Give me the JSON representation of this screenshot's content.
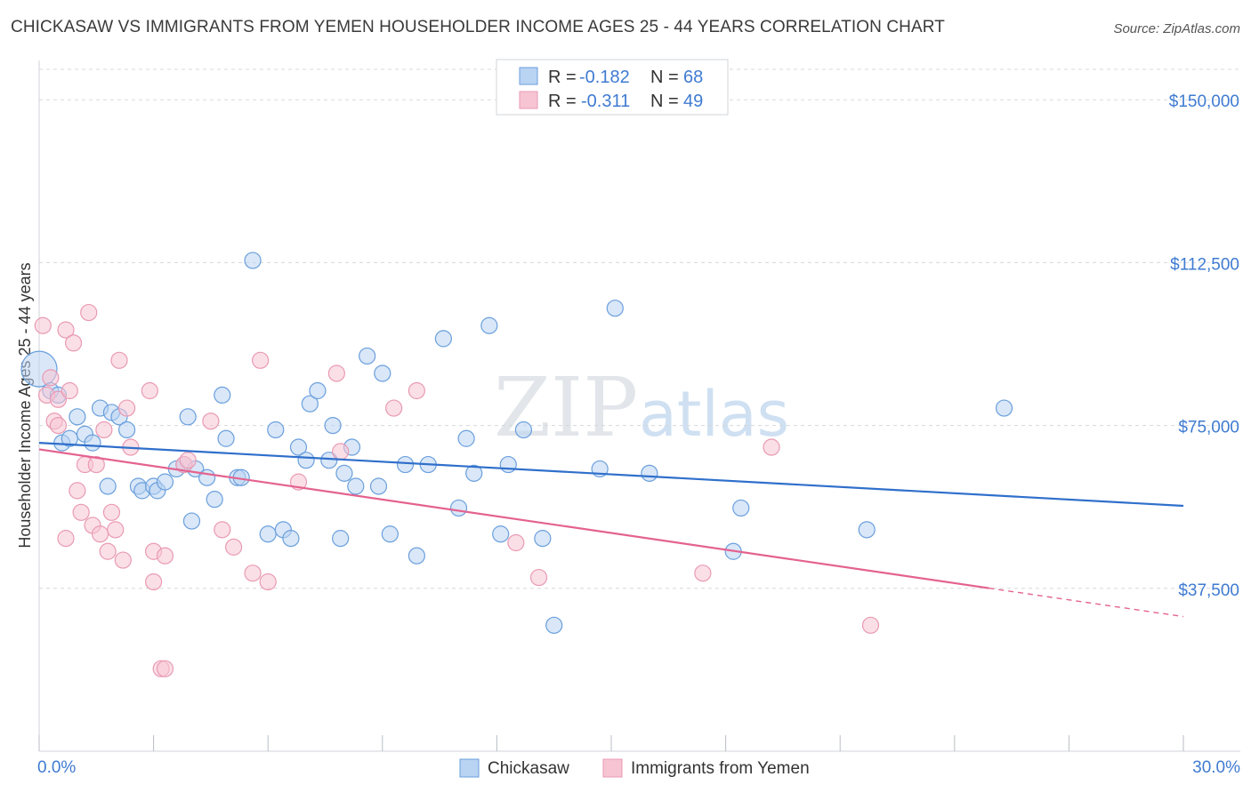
{
  "title": "CHICKASAW VS IMMIGRANTS FROM YEMEN HOUSEHOLDER INCOME AGES 25 - 44 YEARS CORRELATION CHART",
  "source": "Source: ZipAtlas.com",
  "watermark": {
    "zip": "ZIP",
    "atlas": "atlas"
  },
  "colors": {
    "blue_fill": "#b9d3f3",
    "blue_stroke": "#6a9fdc",
    "blue_line": "#2f6fcb",
    "pink_fill": "#f7c4d3",
    "pink_stroke": "#e99ab3",
    "pink_line": "#e4628f",
    "grid": "#d5d8dc",
    "accent_text": "#3f7bd1"
  },
  "legend": {
    "row1": {
      "r_label": "R = ",
      "r_value": "-0.182",
      "n_label": "N = ",
      "n_value": "68"
    },
    "row2": {
      "r_label": "R = ",
      "r_value": "-0.311",
      "n_label": "N = ",
      "n_value": "49"
    }
  },
  "chart_data": {
    "type": "scatter",
    "title": "CHICKASAW VS IMMIGRANTS FROM YEMEN HOUSEHOLDER INCOME AGES 25 - 44 YEARS CORRELATION CHART",
    "xlabel": "",
    "ylabel": "Householder Income Ages 25 - 44 years",
    "xlim": [
      0,
      30
    ],
    "ylim": [
      0,
      157000
    ],
    "x_tick_labels": [
      "0.0%",
      "30.0%"
    ],
    "y_ticks": [
      37500,
      75000,
      112500,
      150000
    ],
    "y_tick_labels": [
      "$37,500",
      "$75,000",
      "$112,500",
      "$150,000"
    ],
    "grid": true,
    "legend_position": "top-center",
    "series": [
      {
        "name": "Chickasaw",
        "color": "#6a9fdc",
        "r": -0.182,
        "n": 68,
        "trend": {
          "x0": 0,
          "y0": 71000,
          "x1": 30,
          "y1": 56500,
          "dashed_from": null
        },
        "points": [
          [
            0.0,
            88000,
            20
          ],
          [
            0.3,
            83000,
            9
          ],
          [
            0.5,
            82000,
            9
          ],
          [
            0.6,
            71000,
            9
          ],
          [
            0.8,
            72000,
            9
          ],
          [
            1.0,
            77000,
            9
          ],
          [
            1.2,
            73000,
            9
          ],
          [
            1.4,
            71000,
            9
          ],
          [
            1.6,
            79000,
            9
          ],
          [
            1.8,
            61000,
            9
          ],
          [
            1.9,
            78000,
            9
          ],
          [
            2.1,
            77000,
            9
          ],
          [
            2.3,
            74000,
            9
          ],
          [
            2.6,
            61000,
            9
          ],
          [
            2.7,
            60000,
            9
          ],
          [
            3.0,
            61000,
            9
          ],
          [
            3.1,
            60000,
            9
          ],
          [
            3.3,
            62000,
            9
          ],
          [
            3.6,
            65000,
            9
          ],
          [
            3.8,
            66000,
            9
          ],
          [
            3.9,
            77000,
            9
          ],
          [
            4.0,
            53000,
            9
          ],
          [
            4.1,
            65000,
            9
          ],
          [
            4.4,
            63000,
            9
          ],
          [
            4.6,
            58000,
            9
          ],
          [
            4.8,
            82000,
            9
          ],
          [
            4.9,
            72000,
            9
          ],
          [
            5.2,
            63000,
            9
          ],
          [
            5.3,
            63000,
            9
          ],
          [
            5.6,
            113000,
            9
          ],
          [
            6.0,
            50000,
            9
          ],
          [
            6.2,
            74000,
            9
          ],
          [
            6.4,
            51000,
            9
          ],
          [
            6.6,
            49000,
            9
          ],
          [
            6.8,
            70000,
            9
          ],
          [
            7.0,
            67000,
            9
          ],
          [
            7.1,
            80000,
            9
          ],
          [
            7.3,
            83000,
            9
          ],
          [
            7.6,
            67000,
            9
          ],
          [
            7.7,
            75000,
            9
          ],
          [
            7.9,
            49000,
            9
          ],
          [
            8.0,
            64000,
            9
          ],
          [
            8.2,
            70000,
            9
          ],
          [
            8.3,
            61000,
            9
          ],
          [
            8.6,
            91000,
            9
          ],
          [
            8.9,
            61000,
            9
          ],
          [
            9.0,
            87000,
            9
          ],
          [
            9.2,
            50000,
            9
          ],
          [
            9.6,
            66000,
            9
          ],
          [
            9.9,
            45000,
            9
          ],
          [
            10.2,
            66000,
            9
          ],
          [
            10.6,
            95000,
            9
          ],
          [
            11.0,
            56000,
            9
          ],
          [
            11.2,
            72000,
            9
          ],
          [
            11.4,
            64000,
            9
          ],
          [
            11.8,
            98000,
            9
          ],
          [
            12.1,
            50000,
            9
          ],
          [
            12.3,
            66000,
            9
          ],
          [
            12.7,
            74000,
            9
          ],
          [
            13.2,
            49000,
            9
          ],
          [
            13.5,
            29000,
            9
          ],
          [
            14.7,
            65000,
            9
          ],
          [
            15.1,
            102000,
            9
          ],
          [
            16.0,
            64000,
            9
          ],
          [
            18.2,
            46000,
            9
          ],
          [
            18.4,
            56000,
            9
          ],
          [
            21.7,
            51000,
            9
          ],
          [
            25.3,
            79000,
            9
          ]
        ]
      },
      {
        "name": "Immigrants from Yemen",
        "color": "#e99ab3",
        "r": -0.311,
        "n": 49,
        "trend": {
          "x0": 0,
          "y0": 69500,
          "x1": 30,
          "y1": 31000,
          "dashed_from": 24.9
        },
        "points": [
          [
            0.1,
            98000,
            9
          ],
          [
            0.2,
            82000,
            9
          ],
          [
            0.3,
            86000,
            9
          ],
          [
            0.4,
            76000,
            9
          ],
          [
            0.5,
            81000,
            9
          ],
          [
            0.5,
            75000,
            9
          ],
          [
            0.7,
            49000,
            9
          ],
          [
            0.7,
            97000,
            9
          ],
          [
            0.8,
            83000,
            9
          ],
          [
            0.9,
            94000,
            9
          ],
          [
            1.0,
            60000,
            9
          ],
          [
            1.1,
            55000,
            9
          ],
          [
            1.2,
            66000,
            9
          ],
          [
            1.3,
            101000,
            9
          ],
          [
            1.4,
            52000,
            9
          ],
          [
            1.5,
            66000,
            9
          ],
          [
            1.6,
            50000,
            9
          ],
          [
            1.7,
            74000,
            9
          ],
          [
            1.8,
            46000,
            9
          ],
          [
            1.9,
            55000,
            9
          ],
          [
            2.0,
            51000,
            9
          ],
          [
            2.1,
            90000,
            9
          ],
          [
            2.2,
            44000,
            9
          ],
          [
            2.3,
            79000,
            9
          ],
          [
            2.4,
            70000,
            9
          ],
          [
            2.9,
            83000,
            9
          ],
          [
            3.0,
            46000,
            9
          ],
          [
            3.0,
            39000,
            9
          ],
          [
            3.2,
            19000,
            9
          ],
          [
            3.3,
            19000,
            9
          ],
          [
            3.3,
            45000,
            9
          ],
          [
            3.8,
            66000,
            9
          ],
          [
            3.9,
            67000,
            9
          ],
          [
            4.5,
            76000,
            9
          ],
          [
            4.8,
            51000,
            9
          ],
          [
            5.1,
            47000,
            9
          ],
          [
            5.6,
            41000,
            9
          ],
          [
            5.8,
            90000,
            9
          ],
          [
            6.0,
            39000,
            9
          ],
          [
            6.8,
            62000,
            9
          ],
          [
            7.8,
            87000,
            9
          ],
          [
            7.9,
            69000,
            9
          ],
          [
            9.3,
            79000,
            9
          ],
          [
            9.9,
            83000,
            9
          ],
          [
            12.5,
            48000,
            9
          ],
          [
            13.1,
            40000,
            9
          ],
          [
            17.4,
            41000,
            9
          ],
          [
            19.2,
            70000,
            9
          ],
          [
            21.8,
            29000,
            9
          ]
        ]
      }
    ]
  },
  "bottom_legend": {
    "item1": "Chickasaw",
    "item2": "Immigrants from Yemen"
  }
}
